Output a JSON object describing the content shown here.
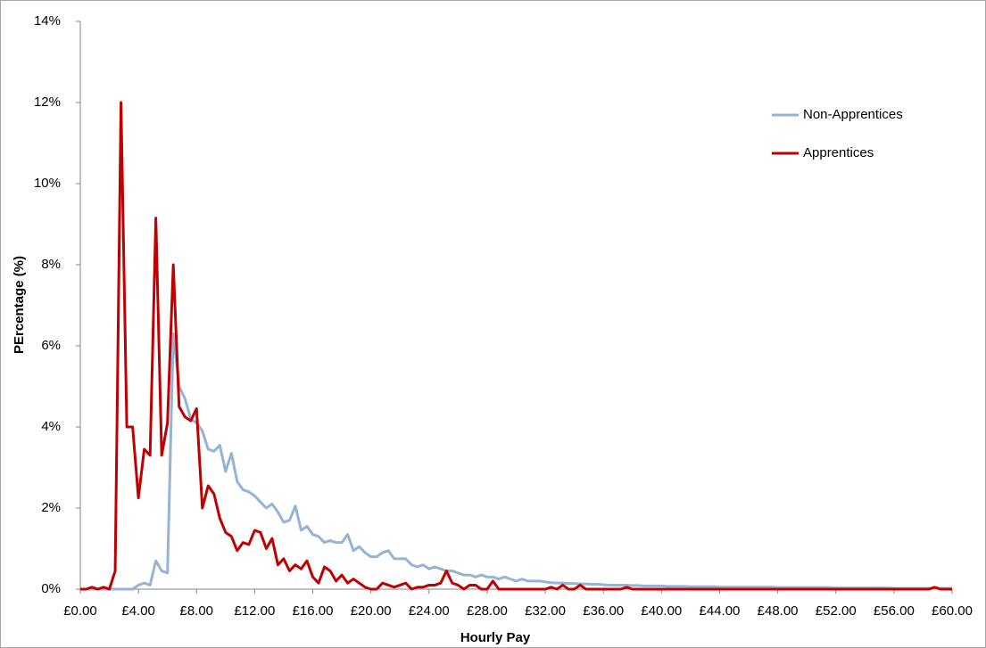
{
  "chart_data": {
    "type": "line",
    "x_label": "Hourly Pay",
    "y_label": "PErcentage (%)",
    "x": [
      0,
      0.4,
      0.8,
      1.2,
      1.6,
      2,
      2.4,
      2.8,
      3.2,
      3.6,
      4,
      4.4,
      4.8,
      5.2,
      5.6,
      6,
      6.4,
      6.8,
      7.2,
      7.6,
      8,
      8.4,
      8.8,
      9.2,
      9.6,
      10,
      10.4,
      10.8,
      11.2,
      11.6,
      12,
      12.4,
      12.8,
      13.2,
      13.6,
      14,
      14.4,
      14.8,
      15.2,
      15.6,
      16,
      16.4,
      16.8,
      17.2,
      17.6,
      18,
      18.4,
      18.8,
      19.2,
      19.6,
      20,
      20.4,
      20.8,
      21.2,
      21.6,
      22,
      22.4,
      22.8,
      23.2,
      23.6,
      24,
      24.4,
      24.8,
      25.2,
      25.6,
      26,
      26.4,
      26.8,
      27.2,
      27.6,
      28,
      28.4,
      28.8,
      29.2,
      29.6,
      30,
      30.4,
      30.8,
      31.2,
      31.6,
      32,
      32.4,
      32.8,
      33.2,
      33.6,
      34,
      34.4,
      34.8,
      35.2,
      35.6,
      36,
      36.4,
      36.8,
      37.2,
      37.6,
      38,
      38.4,
      38.8,
      39.2,
      39.6,
      40,
      40.4,
      40.8,
      41.2,
      41.6,
      42,
      42.4,
      42.8,
      43.2,
      43.6,
      44,
      44.4,
      44.8,
      45.2,
      45.6,
      46,
      46.4,
      46.8,
      47.2,
      47.6,
      48,
      48.4,
      48.8,
      49.2,
      49.6,
      50,
      50.4,
      50.8,
      51.2,
      51.6,
      52,
      52.4,
      52.8,
      53.2,
      53.6,
      54,
      54.4,
      54.8,
      55.2,
      55.6,
      56,
      56.4,
      56.8,
      57.2,
      57.6,
      58,
      58.4,
      58.8,
      59.2,
      59.6,
      60
    ],
    "series": [
      {
        "name": "Non-Apprentices",
        "color": "#95b3d7",
        "values": [
          0,
          0,
          0,
          0,
          0,
          0,
          0,
          0,
          0,
          0,
          0.1,
          0.15,
          0.1,
          0.7,
          0.45,
          0.4,
          6.3,
          5.0,
          4.7,
          4.2,
          4.1,
          3.9,
          3.45,
          3.4,
          3.55,
          2.9,
          3.35,
          2.65,
          2.45,
          2.4,
          2.3,
          2.15,
          2.0,
          2.1,
          1.9,
          1.65,
          1.7,
          2.05,
          1.45,
          1.55,
          1.35,
          1.3,
          1.15,
          1.2,
          1.15,
          1.15,
          1.35,
          0.95,
          1.05,
          0.9,
          0.8,
          0.8,
          0.9,
          0.95,
          0.75,
          0.75,
          0.75,
          0.6,
          0.55,
          0.6,
          0.5,
          0.55,
          0.5,
          0.45,
          0.45,
          0.4,
          0.35,
          0.35,
          0.3,
          0.35,
          0.3,
          0.3,
          0.25,
          0.3,
          0.25,
          0.2,
          0.25,
          0.2,
          0.2,
          0.2,
          0.18,
          0.16,
          0.15,
          0.15,
          0.14,
          0.14,
          0.13,
          0.13,
          0.12,
          0.12,
          0.11,
          0.1,
          0.1,
          0.1,
          0.1,
          0.09,
          0.09,
          0.08,
          0.08,
          0.08,
          0.08,
          0.07,
          0.07,
          0.07,
          0.07,
          0.06,
          0.06,
          0.06,
          0.06,
          0.06,
          0.05,
          0.05,
          0.05,
          0.05,
          0.05,
          0.05,
          0.05,
          0.05,
          0.05,
          0.05,
          0.04,
          0.04,
          0.04,
          0.04,
          0.04,
          0.04,
          0.04,
          0.04,
          0.04,
          0.04,
          0.03,
          0.03,
          0.03,
          0.03,
          0.03,
          0.03,
          0.03,
          0.03,
          0.03,
          0.03,
          0.02,
          0.02,
          0.02,
          0.02,
          0.02,
          0.02,
          0.02,
          0.02,
          0.02,
          0.02,
          0.02
        ]
      },
      {
        "name": "Apprentices",
        "color": "#c00000",
        "values": [
          0,
          0,
          0.05,
          0,
          0.05,
          0,
          0.45,
          12.0,
          4.0,
          4.0,
          2.25,
          3.45,
          3.3,
          9.15,
          3.3,
          4.1,
          8.0,
          4.5,
          4.25,
          4.15,
          4.45,
          2.0,
          2.55,
          2.35,
          1.75,
          1.4,
          1.3,
          0.95,
          1.15,
          1.1,
          1.45,
          1.4,
          1.0,
          1.25,
          0.6,
          0.75,
          0.45,
          0.6,
          0.5,
          0.7,
          0.3,
          0.15,
          0.55,
          0.45,
          0.2,
          0.35,
          0.15,
          0.25,
          0.15,
          0.05,
          0,
          0,
          0.15,
          0.1,
          0.05,
          0.1,
          0.15,
          0,
          0.05,
          0.05,
          0.1,
          0.1,
          0.15,
          0.45,
          0.15,
          0.1,
          0,
          0.1,
          0.1,
          0,
          0,
          0.2,
          0,
          0,
          0,
          0,
          0,
          0,
          0,
          0,
          0,
          0.05,
          0,
          0.1,
          0,
          0,
          0.1,
          0,
          0,
          0,
          0,
          0,
          0,
          0,
          0.05,
          0,
          0,
          0,
          0,
          0,
          0,
          0,
          0,
          0,
          0,
          0,
          0,
          0,
          0,
          0,
          0,
          0,
          0,
          0,
          0,
          0,
          0,
          0,
          0,
          0,
          0,
          0,
          0,
          0,
          0,
          0,
          0,
          0,
          0,
          0,
          0,
          0,
          0,
          0,
          0,
          0,
          0,
          0,
          0,
          0,
          0,
          0,
          0,
          0,
          0,
          0,
          0,
          0.05,
          0,
          0,
          0
        ]
      }
    ],
    "xlim": [
      0,
      60
    ],
    "xticks": [
      {
        "value": 0,
        "label": "£0.00"
      },
      {
        "value": 4,
        "label": "£4.00"
      },
      {
        "value": 8,
        "label": "£8.00"
      },
      {
        "value": 12,
        "label": "£12.00"
      },
      {
        "value": 16,
        "label": "£16.00"
      },
      {
        "value": 20,
        "label": "£20.00"
      },
      {
        "value": 24,
        "label": "£24.00"
      },
      {
        "value": 28,
        "label": "£28.00"
      },
      {
        "value": 32,
        "label": "£32.00"
      },
      {
        "value": 36,
        "label": "£36.00"
      },
      {
        "value": 40,
        "label": "£40.00"
      },
      {
        "value": 44,
        "label": "£44.00"
      },
      {
        "value": 48,
        "label": "£48.00"
      },
      {
        "value": 52,
        "label": "£52.00"
      },
      {
        "value": 56,
        "label": "£56.00"
      },
      {
        "value": 60,
        "label": "£60.00"
      }
    ],
    "ylim": [
      0,
      14
    ],
    "yticks": [
      {
        "value": 0,
        "label": "0%"
      },
      {
        "value": 2,
        "label": "2%"
      },
      {
        "value": 4,
        "label": "4%"
      },
      {
        "value": 6,
        "label": "6%"
      },
      {
        "value": 8,
        "label": "8%"
      },
      {
        "value": 10,
        "label": "10%"
      },
      {
        "value": 12,
        "label": "12%"
      },
      {
        "value": 14,
        "label": "14%"
      }
    ],
    "grid": false,
    "legend": "upper right"
  }
}
